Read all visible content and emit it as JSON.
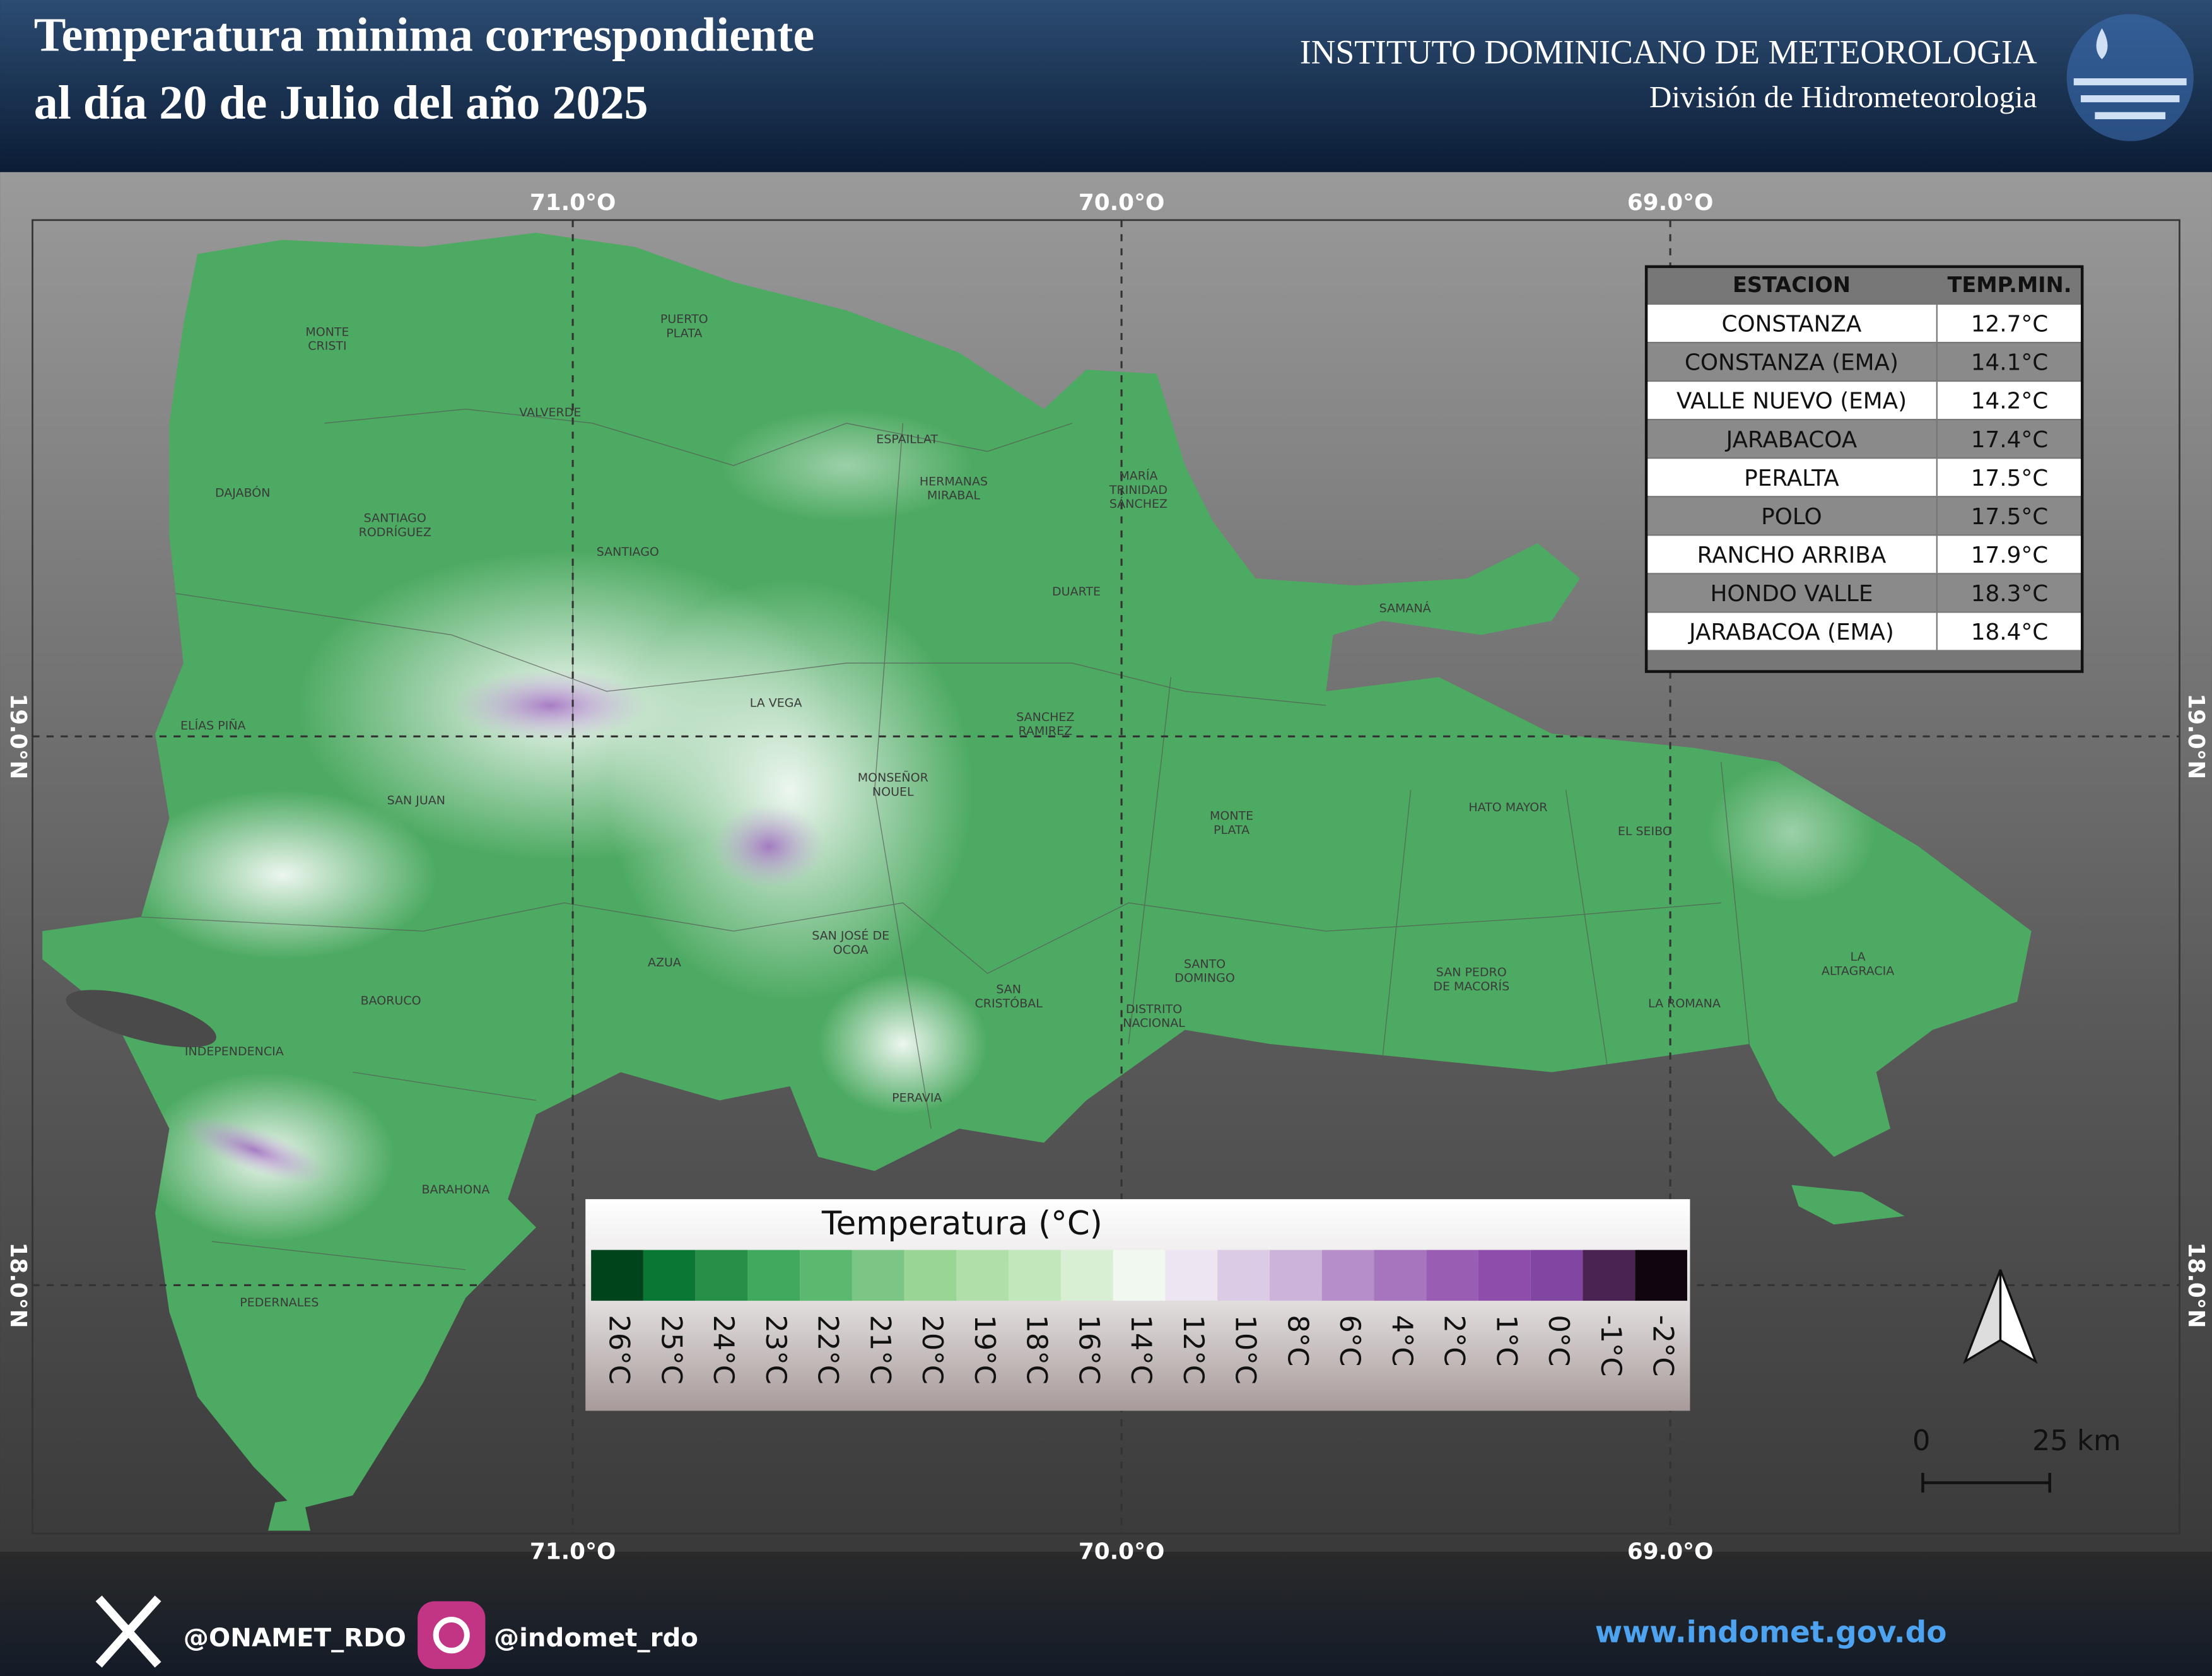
{
  "header": {
    "title": [
      "Temperatura minima correspondiente",
      "al día 20 de Julio del año 2025"
    ],
    "institute": "INSTITUTO DOMINICANO DE METEOROLOGIA",
    "division": "División de Hidrometeorologia"
  },
  "map": {
    "longitudes": [
      "71.0°O",
      "70.0°O",
      "69.0°O"
    ],
    "latitudes": [
      "19.0°N",
      "18.0°N"
    ],
    "provinces": [
      [
        "MONTE",
        "CRISTI"
      ],
      [
        "PUERTO",
        "PLATA"
      ],
      [
        "VALVERDE"
      ],
      [
        "ESPAILLAT"
      ],
      [
        "HERMANAS",
        "MIRABAL"
      ],
      [
        "MARÍA",
        "TRINIDAD",
        "SÁNCHEZ"
      ],
      [
        "DAJABÓN"
      ],
      [
        "SANTIAGO",
        "RODRÍGUEZ"
      ],
      [
        "SANTIAGO"
      ],
      [
        "DUARTE"
      ],
      [
        "SAMANÁ"
      ],
      [
        "LA VEGA"
      ],
      [
        "ELÍAS PIÑA"
      ],
      [
        "SANCHEZ",
        "RAMIREZ"
      ],
      [
        "MONSEÑOR",
        "NOUEL"
      ],
      [
        "SAN JUAN"
      ],
      [
        "HATO MAYOR"
      ],
      [
        "MONTE",
        "PLATA"
      ],
      [
        "EL SEIBO"
      ],
      [
        "SAN JOSÉ DE",
        "OCOA"
      ],
      [
        "AZUA"
      ],
      [
        "SANTO",
        "DOMINGO"
      ],
      [
        "LA",
        "ALTAGRACIA"
      ],
      [
        "SAN PEDRO",
        "DE MACORÍS"
      ],
      [
        "BAORUCO"
      ],
      [
        "SAN",
        "CRISTÓBAL"
      ],
      [
        "LA ROMANA"
      ],
      [
        "DISTRITO",
        "NACIONAL"
      ],
      [
        "INDEPENDENCIA"
      ],
      [
        "PERAVIA"
      ],
      [
        "BARAHONA"
      ],
      [
        "PEDERNALES"
      ]
    ]
  },
  "table": {
    "header": [
      "ESTACION",
      "TEMP.MIN."
    ],
    "rows": [
      [
        "CONSTANZA",
        "12.7°C"
      ],
      [
        "CONSTANZA (EMA)",
        "14.1°C"
      ],
      [
        "VALLE NUEVO (EMA)",
        "14.2°C"
      ],
      [
        "JARABACOA",
        "17.4°C"
      ],
      [
        "PERALTA",
        "17.5°C"
      ],
      [
        "POLO",
        "17.5°C"
      ],
      [
        "RANCHO ARRIBA",
        "17.9°C"
      ],
      [
        "HONDO VALLE",
        "18.3°C"
      ],
      [
        "JARABACOA (EMA)",
        "18.4°C"
      ]
    ]
  },
  "legend": {
    "title": "Temperatura (°C)",
    "items": [
      {
        "label": "26°C",
        "color": "#00441b"
      },
      {
        "label": "25°C",
        "color": "#0b7734"
      },
      {
        "label": "24°C",
        "color": "#278f48"
      },
      {
        "label": "23°C",
        "color": "#40a95d"
      },
      {
        "label": "22°C",
        "color": "#5bb96f"
      },
      {
        "label": "21°C",
        "color": "#7cc685"
      },
      {
        "label": "20°C",
        "color": "#99d594"
      },
      {
        "label": "19°C",
        "color": "#b1dfaa"
      },
      {
        "label": "18°C",
        "color": "#c2e7bb"
      },
      {
        "label": "16°C",
        "color": "#d8efd3"
      },
      {
        "label": "14°C",
        "color": "#f1f8f0"
      },
      {
        "label": "12°C",
        "color": "#ede6f2"
      },
      {
        "label": "10°C",
        "color": "#dccbe4"
      },
      {
        "label": "8°C",
        "color": "#cbb3da"
      },
      {
        "label": "6°C",
        "color": "#b68fca"
      },
      {
        "label": "4°C",
        "color": "#a775bd"
      },
      {
        "label": "2°C",
        "color": "#9a5db4"
      },
      {
        "label": "1°C",
        "color": "#8e4cab"
      },
      {
        "label": "0°C",
        "color": "#8145a2"
      },
      {
        "label": "-1°C",
        "color": "#4b2353"
      },
      {
        "label": "-2°C",
        "color": "#110510"
      }
    ]
  },
  "scale_bar": [
    "0",
    "25 km"
  ],
  "footer": {
    "x_handle": "@ONAMET_RDO",
    "instagram": "@indomet_rdo",
    "website": "www.indomet.gov.do"
  }
}
